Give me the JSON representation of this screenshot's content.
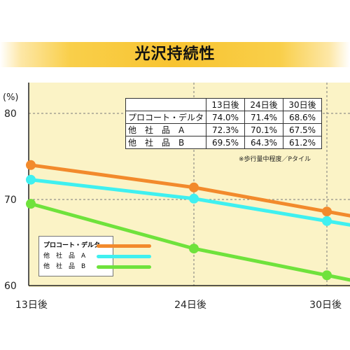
{
  "title": "光沢持続性",
  "chart_data": {
    "type": "line",
    "y_unit": "(%)",
    "ylim": [
      60,
      80
    ],
    "y_ticks": [
      "80",
      "70",
      "60"
    ],
    "categories": [
      "13日後",
      "24日後",
      "30日後"
    ],
    "series": [
      {
        "name": "プロコート・デルタ",
        "values": [
          74.0,
          71.4,
          68.6
        ],
        "color": "#f28a2c"
      },
      {
        "name": "他　社　品　A",
        "values": [
          72.3,
          70.1,
          67.5
        ],
        "color": "#3ff0f0"
      },
      {
        "name": "他　社　品　B",
        "values": [
          69.5,
          64.3,
          61.2
        ],
        "color": "#6fe23c"
      }
    ],
    "grid": true,
    "legend_position": "bottom-left"
  },
  "table": {
    "headers": [
      "13日後",
      "24日後",
      "30日後"
    ],
    "rows": [
      {
        "name": "プロコート・デルタ",
        "values": [
          "74.0%",
          "71.4%",
          "68.6%"
        ]
      },
      {
        "name": "他　社　品　A",
        "values": [
          "72.3%",
          "70.1%",
          "67.5%"
        ]
      },
      {
        "name": "他　社　品　B",
        "values": [
          "69.5%",
          "64.3%",
          "61.2%"
        ]
      }
    ]
  },
  "note": "※歩行量中程度／Pタイル",
  "colors": {
    "plot_bg": "#fbf3c6",
    "title_band": "#f8c431",
    "grid": "#7a7a7a"
  }
}
